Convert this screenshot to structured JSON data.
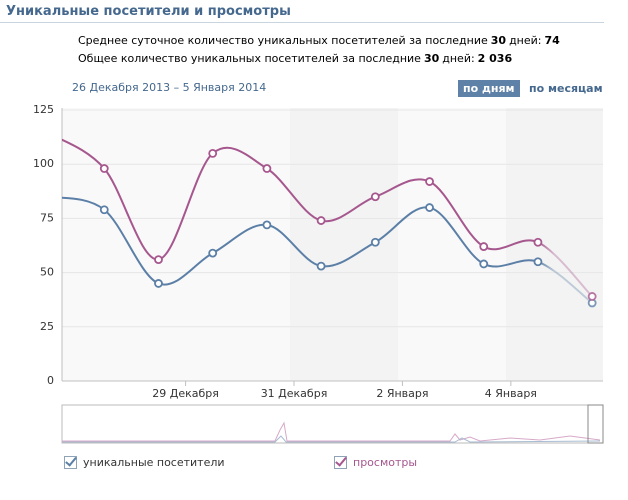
{
  "header": {
    "title": "Уникальные посетители и просмотры"
  },
  "stats": [
    {
      "pre": "Среднее суточное количество уникальных посетителей за последние",
      "days": "30",
      "mid": "дней:",
      "value": "74"
    },
    {
      "pre": "Общее количество уникальных посетителей за последние",
      "days": "30",
      "mid": "дней:",
      "value": "2 036"
    }
  ],
  "period": "26 Декабря 2013 – 5 Января 2014",
  "buttons": [
    {
      "label": "по дням",
      "active": true
    },
    {
      "label": "по месяцам",
      "active": false
    }
  ],
  "chart_data": {
    "type": "line",
    "x": [
      0,
      1,
      2,
      3,
      4,
      5,
      6,
      7,
      8,
      9,
      10
    ],
    "xlim": [
      0.22,
      10.2
    ],
    "xticks": [
      {
        "value": 2.5,
        "label": "29 Декабря"
      },
      {
        "value": 4.5,
        "label": "31 Декабря"
      },
      {
        "value": 6.5,
        "label": "2 Января"
      },
      {
        "value": 8.5,
        "label": "4 Января"
      }
    ],
    "ylim": [
      0,
      125
    ],
    "yticks": [
      0,
      25,
      50,
      75,
      100,
      125
    ],
    "grid": true,
    "series": [
      {
        "name": "уникальные посетители",
        "color": "#5b7fa6",
        "values": [
          85,
          79,
          45,
          59,
          72,
          53,
          64,
          80,
          54,
          55,
          36
        ]
      },
      {
        "name": "просмотры",
        "color": "#a6578e",
        "values": [
          114,
          98,
          56,
          105,
          98,
          74,
          85,
          92,
          62,
          64,
          39
        ]
      }
    ]
  }
}
